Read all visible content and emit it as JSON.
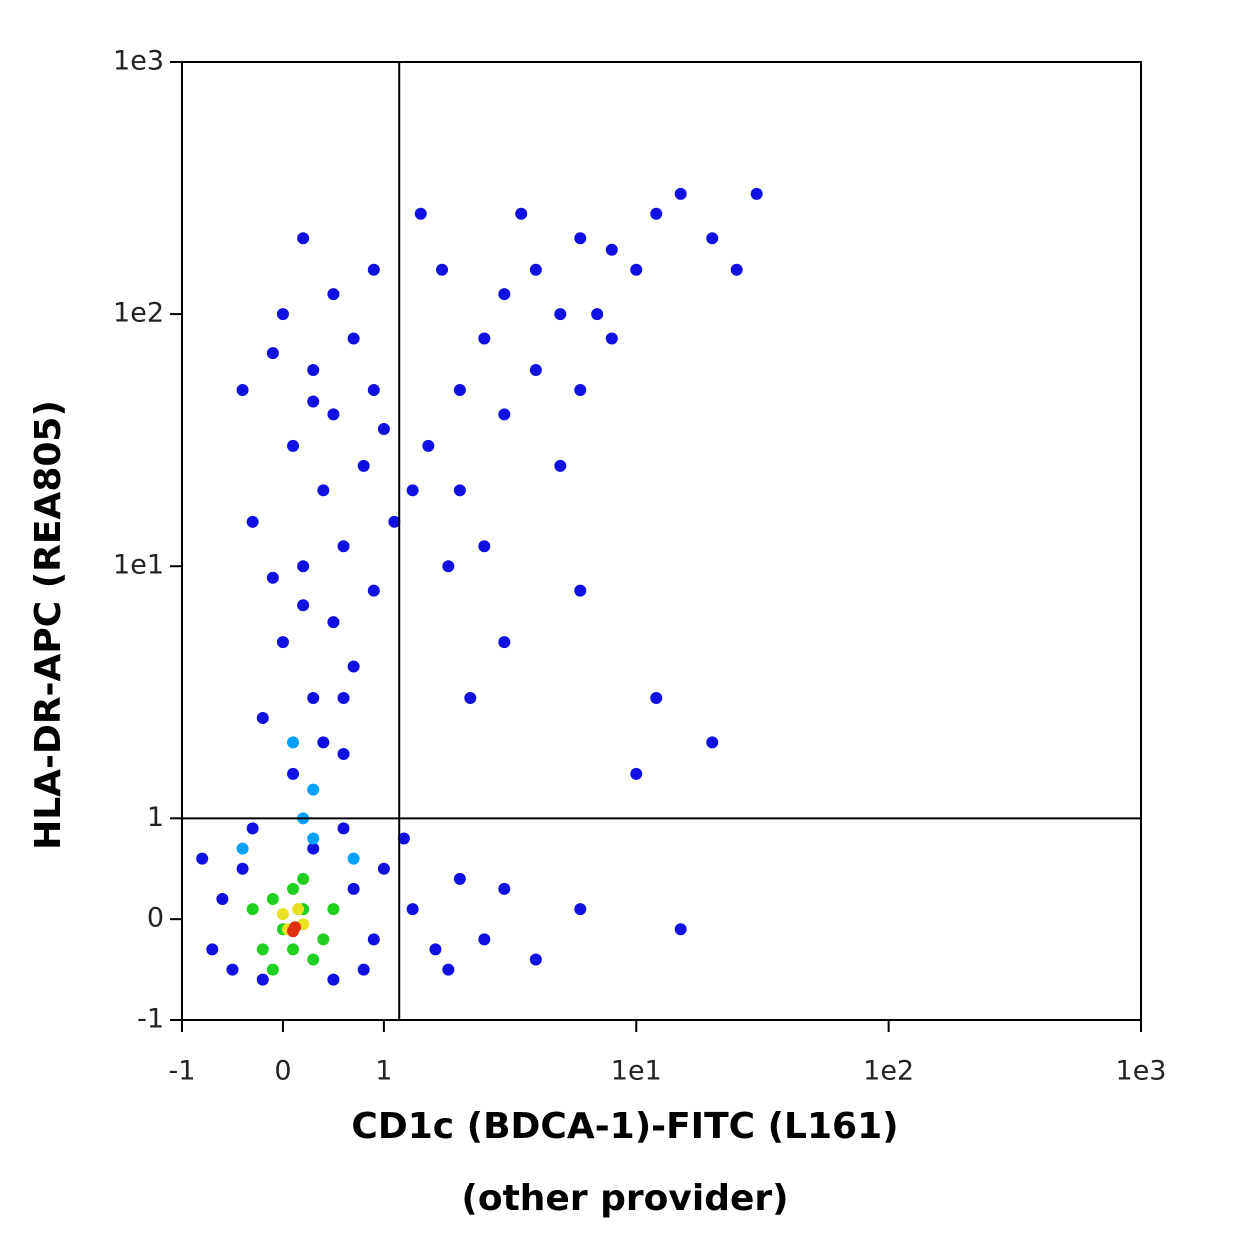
{
  "chart_data": {
    "type": "scatter",
    "x_label": "CD1c (BDCA-1)-FITC (L161)",
    "x_label_2": "(other provider)",
    "y_label": "HLA-DR-APC (REA805)",
    "scale": "biexponential",
    "xlim": [
      -1,
      1000
    ],
    "ylim": [
      -1,
      1000
    ],
    "xticks": [
      -1,
      0,
      1,
      {
        "value": 10,
        "label": "1e1"
      },
      {
        "value": 100,
        "label": "1e2"
      },
      {
        "value": 1000,
        "label": "1e3"
      }
    ],
    "yticks": [
      -1,
      0,
      1,
      {
        "value": 10,
        "label": "1e1"
      },
      {
        "value": 100,
        "label": "1e2"
      },
      {
        "value": 1000,
        "label": "1e3"
      }
    ],
    "gates": {
      "x": 1.15,
      "y": 1
    },
    "series": [
      {
        "color": "#1010e0",
        "x": [
          -0.7,
          -0.6,
          -0.5,
          -0.4,
          0.5,
          0.7,
          0.9,
          1.0,
          -0.2,
          0.3,
          0.8,
          1.3,
          1.6,
          2,
          -0.8,
          0.6,
          -0.3,
          1.2,
          0.1,
          0.4,
          0.6,
          -0.2,
          0.3,
          0.7,
          0.0,
          0.5,
          0.9,
          0.2,
          0.6,
          -0.3,
          0.4,
          0.8,
          0.1,
          0.5,
          0.9,
          0.3,
          0.7,
          0.0,
          0.5,
          0.9,
          0.2,
          -0.1,
          1.0,
          0.3,
          -0.4,
          0.6,
          0.2,
          -0.1,
          1.1,
          1.3,
          1.5,
          2,
          2.5,
          3,
          4,
          5,
          6,
          8,
          10,
          12,
          15,
          20,
          25,
          30,
          3,
          4,
          2,
          1.8,
          2.5,
          6,
          8,
          5,
          3,
          2.2,
          10,
          12,
          6,
          20,
          1.7,
          1.4,
          3.5,
          7,
          2.5,
          3,
          4,
          6,
          15,
          1.8
        ],
        "values": [
          -0.3,
          0.2,
          -0.5,
          0.5,
          -0.6,
          0.3,
          -0.2,
          0.5,
          -0.6,
          0.7,
          -0.5,
          0.1,
          -0.3,
          0.4,
          0.6,
          0.9,
          0.9,
          0.8,
          1.5,
          2,
          1.8,
          2.5,
          3,
          4,
          5,
          6,
          8,
          10,
          12,
          15,
          20,
          25,
          30,
          40,
          50,
          60,
          80,
          100,
          120,
          150,
          200,
          70,
          35,
          45,
          50,
          3,
          7,
          9,
          15,
          20,
          30,
          50,
          80,
          120,
          150,
          100,
          200,
          180,
          150,
          250,
          300,
          200,
          150,
          300,
          40,
          60,
          20,
          10,
          12,
          50,
          80,
          25,
          5,
          3,
          1.5,
          3,
          8,
          2,
          150,
          250,
          250,
          100,
          -0.2,
          0.3,
          -0.4,
          0.1,
          -0.1,
          -0.5
        ]
      },
      {
        "color": "#00a0ff",
        "x": [
          0.2,
          0.3,
          0.1,
          0.3,
          -0.4,
          0.7
        ],
        "values": [
          1,
          0.8,
          2,
          1.3,
          0.7,
          0.6
        ]
      },
      {
        "color": "#20d020",
        "x": [
          0,
          0.2,
          -0.2,
          0.4,
          0.1,
          -0.3,
          0.3,
          0.5,
          -0.1,
          0.2,
          0.1,
          -0.1
        ],
        "values": [
          -0.1,
          0.1,
          -0.3,
          -0.2,
          0.3,
          0.1,
          -0.4,
          0.1,
          -0.5,
          0.4,
          -0.3,
          0.2
        ]
      },
      {
        "color": "#e8e020",
        "x": [
          0.05,
          0.2,
          0.0,
          0.15
        ],
        "values": [
          -0.1,
          -0.05,
          0.05,
          0.1
        ]
      },
      {
        "color": "#e03010",
        "x": [
          0.12,
          0.1
        ],
        "values": [
          -0.08,
          -0.12
        ]
      }
    ]
  }
}
